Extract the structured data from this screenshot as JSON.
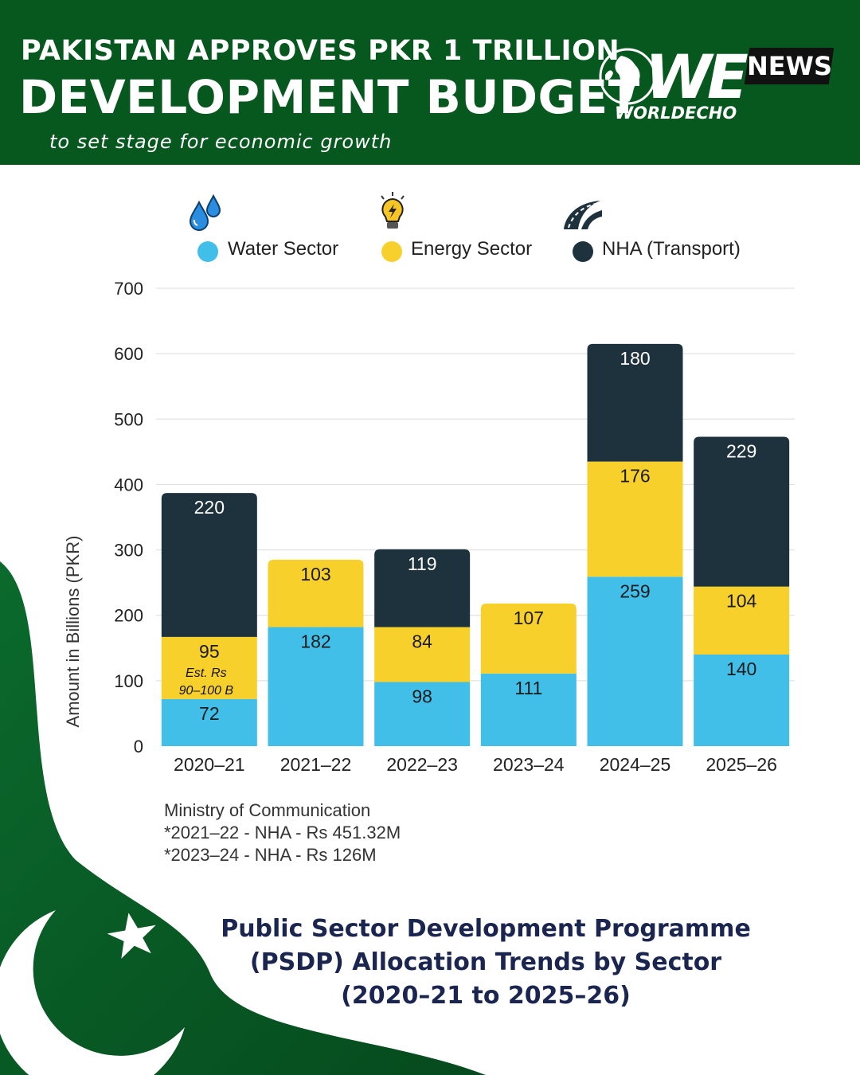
{
  "header": {
    "line1": "PAKISTAN APPROVES PKR 1 TRILLION",
    "line2": "DEVELOPMENT BUDGET",
    "subtitle": "to set stage for economic growth"
  },
  "logo": {
    "mark": "WE",
    "badge": "NEWS",
    "brand": "WORLDECHO"
  },
  "legend": [
    {
      "label": "Water Sector",
      "icon": "water-drops-icon",
      "color": "#41bfe9"
    },
    {
      "label": "Energy Sector",
      "icon": "lightbulb-icon",
      "color": "#f8d02c"
    },
    {
      "label": "NHA (Transport)",
      "icon": "highway-icon",
      "color": "#1e323d"
    }
  ],
  "chart_data": {
    "type": "bar",
    "stacked": true,
    "categories": [
      "2020–21",
      "2021–22",
      "2022–23",
      "2023–24",
      "2024–25",
      "2025–26"
    ],
    "series": [
      {
        "name": "Water Sector",
        "color": "#41bfe9",
        "values": [
          72,
          182,
          98,
          111,
          259,
          140
        ]
      },
      {
        "name": "Energy Sector",
        "color": "#f8d02c",
        "values": [
          95,
          103,
          84,
          107,
          176,
          104
        ]
      },
      {
        "name": "NHA (Transport)",
        "color": "#1e323d",
        "values": [
          220,
          0,
          119,
          0,
          180,
          229
        ]
      }
    ],
    "annotations": [
      {
        "category": "2020–21",
        "series": "Energy Sector",
        "lines": [
          "Est. Rs",
          "90–100 B"
        ]
      }
    ],
    "ylabel": "Amount in Billions (PKR)",
    "ylim": [
      0,
      700
    ],
    "yticks": [
      0,
      100,
      200,
      300,
      400,
      500,
      600,
      700
    ],
    "grid": true,
    "legend_position": "top"
  },
  "footnotes": [
    "Ministry of Communication",
    "*2021–22 - NHA - Rs 451.32M",
    "*2023–24 - NHA - Rs 126M"
  ],
  "bottom_title": [
    "Public Sector Development Programme",
    "(PSDP) Allocation Trends by Sector",
    "(2020–21 to 2025–26)"
  ],
  "colors": {
    "header_bg": "#07581f",
    "flag_green": "#0a6b2c",
    "title_navy": "#1a2550"
  }
}
